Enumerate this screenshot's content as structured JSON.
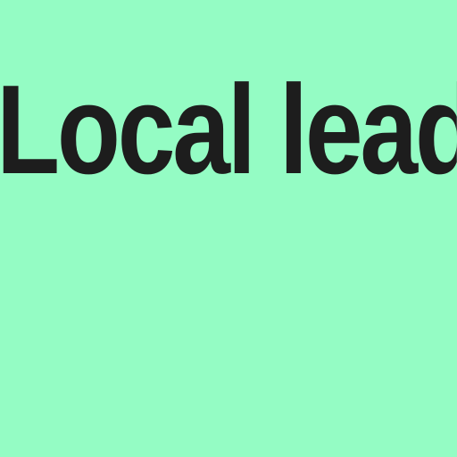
{
  "heading": {
    "text": "Local lead"
  },
  "colors": {
    "background": "#94fcc4",
    "text": "#1d1d1d"
  }
}
